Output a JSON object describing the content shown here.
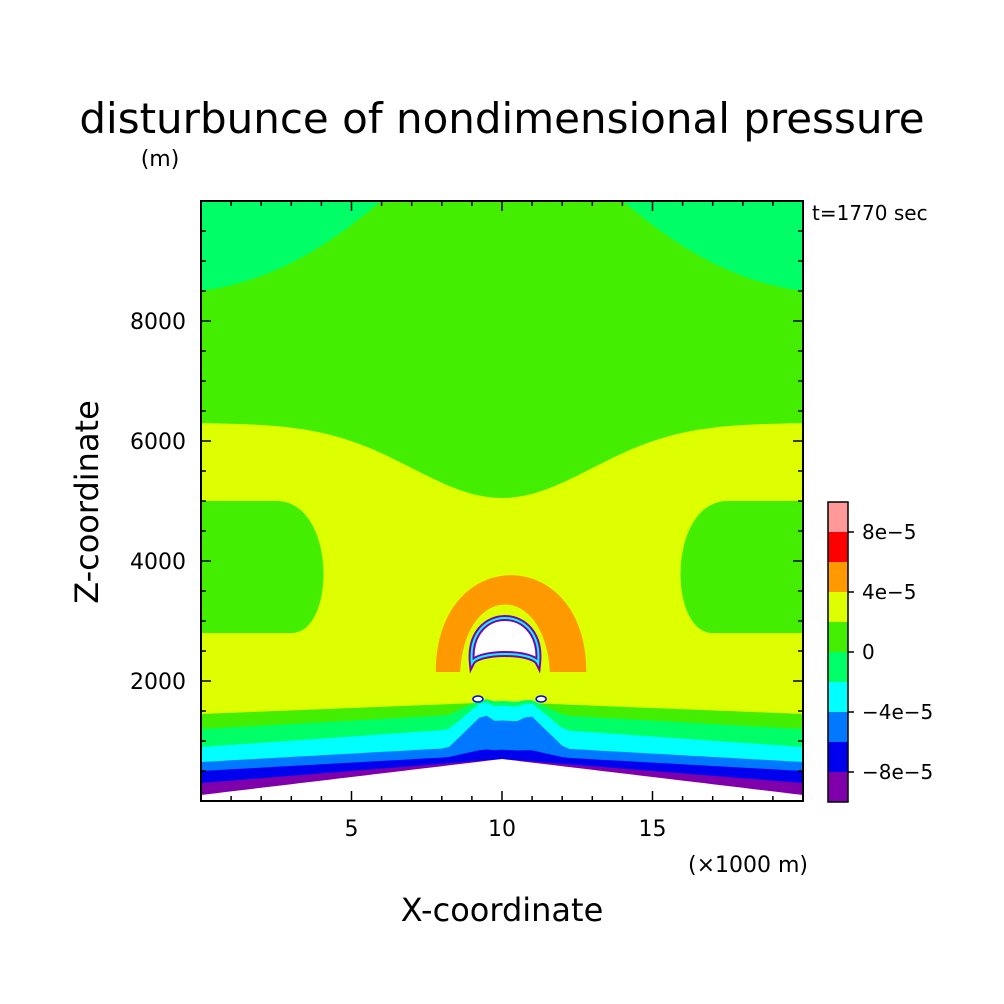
{
  "chart_data": {
    "type": "heatmap",
    "title": "disturbunce of nondimensional pressure",
    "time_label": "t=1770 sec",
    "xlabel": "X-coordinate",
    "x_unit_label": "(×1000 m)",
    "ylabel": "Z-coordinate",
    "y_unit_label": "(m)",
    "xlim": [
      0,
      20
    ],
    "ylim": [
      0,
      10000
    ],
    "x_ticks": [
      5,
      10,
      15
    ],
    "y_ticks": [
      2000,
      4000,
      6000,
      8000
    ],
    "colorbar": {
      "levels": [
        -0.0001,
        -8e-05,
        -6e-05,
        -4e-05,
        -2e-05,
        0,
        2e-05,
        4e-05,
        6e-05,
        8e-05,
        0.0001
      ],
      "colors": [
        "#7f00aa",
        "#0000ee",
        "#0078ff",
        "#00ffff",
        "#00ff66",
        "#44ee00",
        "#ddff00",
        "#ff9900",
        "#ff0000",
        "#ff9999"
      ],
      "tick_values": [
        -8e-05,
        -4e-05,
        0,
        4e-05,
        8e-05
      ],
      "tick_labels": [
        "−8e−5",
        "−4e−5",
        "0",
        "4e−5",
        "8e−5"
      ]
    },
    "terrain": {
      "peak_x": 10,
      "peak_height": 700,
      "edge_height": 100
    },
    "grid": false
  }
}
